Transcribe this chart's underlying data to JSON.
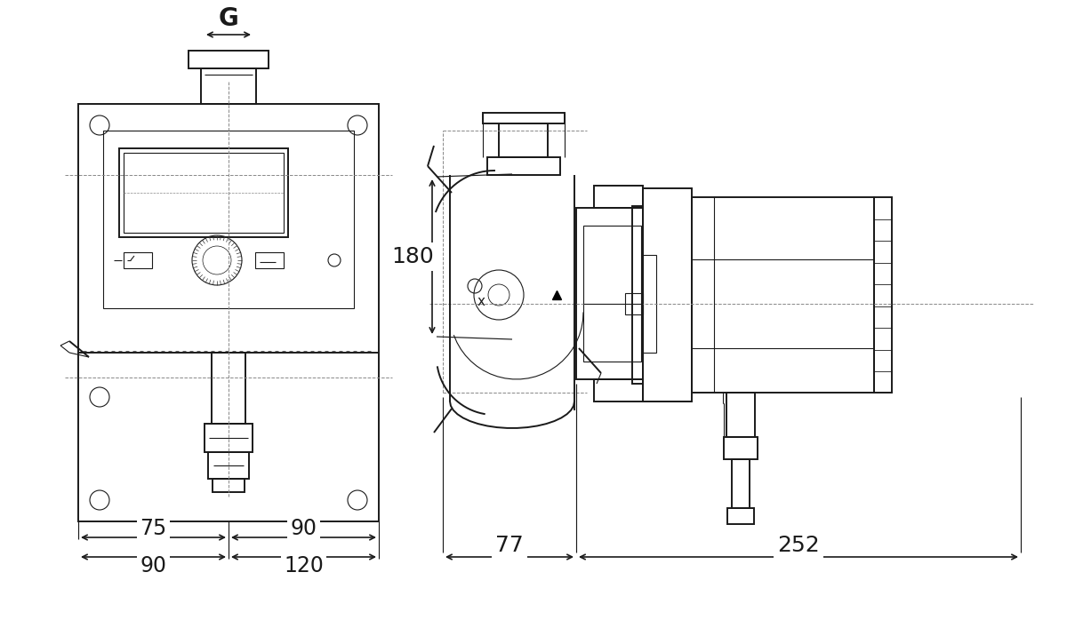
{
  "bg_color": "#ffffff",
  "line_color": "#1a1a1a",
  "dim_color": "#1a1a1a",
  "figsize": [
    12.0,
    7.07
  ],
  "dpi": 100,
  "dims": {
    "left_75": "75",
    "left_90_top": "90",
    "left_90_bot": "90",
    "left_120": "120",
    "right_77": "77",
    "right_252": "252",
    "right_180": "180",
    "top_G": "G"
  },
  "lw_main": 1.4,
  "lw_thin": 0.8,
  "lw_dim": 1.2,
  "lw_dash": 0.7
}
